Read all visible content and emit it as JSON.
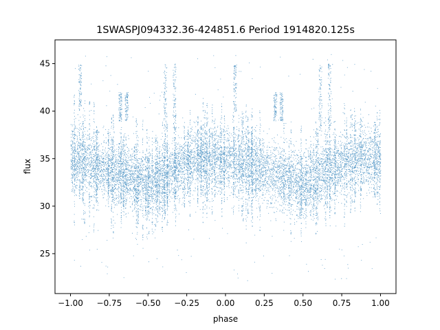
{
  "chart_data": {
    "type": "scatter",
    "title": "1SWASPJ094332.36-424851.6 Period 1914820.125s",
    "xlabel": "phase",
    "ylabel": "flux",
    "xlim": [
      -1.1,
      1.1
    ],
    "ylim": [
      20.8,
      47.5
    ],
    "x_ticks": [
      -1.0,
      -0.75,
      -0.5,
      -0.25,
      0.0,
      0.25,
      0.5,
      0.75,
      1.0
    ],
    "x_tick_labels": [
      "−1.00",
      "−0.75",
      "−0.50",
      "−0.25",
      "0.00",
      "0.25",
      "0.50",
      "0.75",
      "1.00"
    ],
    "y_ticks": [
      25,
      30,
      35,
      40,
      45
    ],
    "y_tick_labels": [
      "25",
      "30",
      "35",
      "40",
      "45"
    ],
    "grid": false,
    "legend": "none",
    "point_color": "#1f77b4",
    "series": [
      {
        "phase_range": [
          -1.0,
          1.0
        ],
        "trend": {
          "x": [
            -1.0,
            -0.9,
            -0.8,
            -0.7,
            -0.6,
            -0.5,
            -0.4,
            -0.3,
            -0.2,
            -0.1,
            0.0,
            0.1,
            0.2,
            0.3,
            0.4,
            0.5,
            0.6,
            0.7,
            0.8,
            0.9,
            1.0
          ],
          "y": [
            35.0,
            34.5,
            34.0,
            33.5,
            33.0,
            32.2,
            33.2,
            34.2,
            34.8,
            35.0,
            35.0,
            34.5,
            34.0,
            33.5,
            33.0,
            32.2,
            33.2,
            34.2,
            34.8,
            35.0,
            35.0
          ]
        },
        "bursts": [
          {
            "x": -0.94,
            "y_range": [
              40,
              45
            ]
          },
          {
            "x": -0.68,
            "y_range": [
              39,
              42
            ]
          },
          {
            "x": -0.64,
            "y_range": [
              39,
              42
            ]
          },
          {
            "x": -0.39,
            "y_range": [
              38,
              45
            ]
          },
          {
            "x": -0.33,
            "y_range": [
              38,
              45
            ]
          },
          {
            "x": 0.06,
            "y_range": [
              40,
              45
            ]
          },
          {
            "x": 0.32,
            "y_range": [
              39,
              42
            ]
          },
          {
            "x": 0.36,
            "y_range": [
              39,
              42
            ]
          },
          {
            "x": 0.61,
            "y_range": [
              38,
              45
            ]
          },
          {
            "x": 0.67,
            "y_range": [
              38,
              45
            ]
          }
        ]
      }
    ]
  }
}
